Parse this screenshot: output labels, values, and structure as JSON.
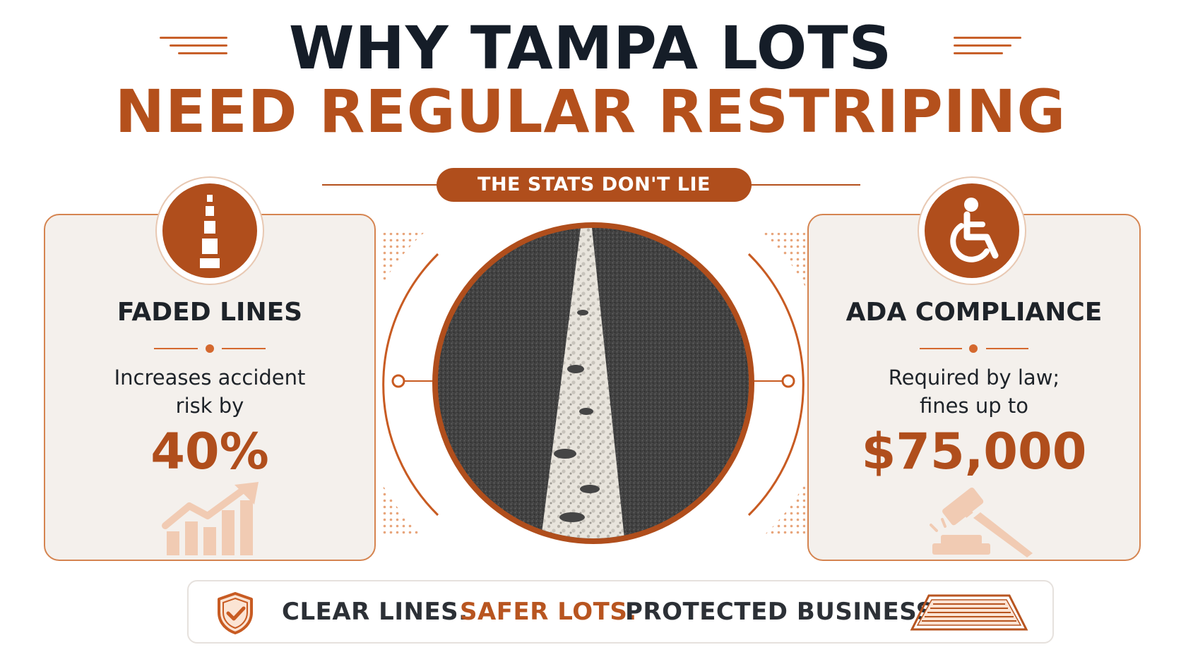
{
  "header": {
    "title_line1": "WHY TAMPA LOTS",
    "title_line2": "NEED REGULAR RESTRIPING"
  },
  "ribbon": {
    "label": "THE STATS DON'T LIE"
  },
  "cards": [
    {
      "icon": "road-lane-icon",
      "title": "FADED LINES",
      "desc_line1": "Increases accident",
      "desc_line2": "risk by",
      "value": "40%",
      "decor_icon": "rising-chart-icon"
    },
    {
      "icon": "wheelchair-icon",
      "title": "ADA COMPLIANCE",
      "desc_line1": "Required by law;",
      "desc_line2": "fines up to",
      "value": "$75,000",
      "decor_icon": "gavel-icon"
    }
  ],
  "center_image": {
    "icon": "faded-road-line-photo"
  },
  "footer": {
    "icon_left": "shield-check-icon",
    "part1": "CLEAR LINES.",
    "part2": "SAFER LOTS.",
    "part3": "PROTECTED BUSINESS.",
    "icon_right": "crosswalk-icon"
  },
  "colors": {
    "accent": "#b04e1c",
    "dark": "#151d28",
    "card_bg": "#f4f0ec"
  }
}
